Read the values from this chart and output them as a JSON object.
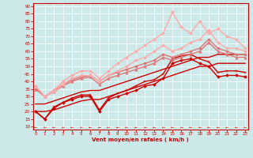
{
  "bg_color": "#cce8e8",
  "grid_color": "#ffffff",
  "xlabel": "Vent moyen/en rafales ( km/h )",
  "x_ticks": [
    0,
    1,
    2,
    3,
    4,
    5,
    6,
    7,
    8,
    9,
    10,
    11,
    12,
    13,
    14,
    15,
    16,
    17,
    18,
    19,
    20,
    21,
    22,
    23
  ],
  "yticks": [
    10,
    15,
    20,
    25,
    30,
    35,
    40,
    45,
    50,
    55,
    60,
    65,
    70,
    75,
    80,
    85,
    90
  ],
  "ylim": [
    8,
    92
  ],
  "xlim": [
    -0.3,
    23.3
  ],
  "lines": [
    {
      "comment": "dark red with diamond markers - lower line",
      "x": [
        0,
        1,
        2,
        3,
        4,
        5,
        6,
        7,
        8,
        9,
        10,
        11,
        12,
        13,
        14,
        15,
        16,
        17,
        18,
        19,
        20,
        21,
        22,
        23
      ],
      "y": [
        20,
        15,
        22,
        26,
        28,
        30,
        30,
        20,
        28,
        30,
        32,
        34,
        37,
        38,
        42,
        52,
        54,
        55,
        52,
        50,
        43,
        44,
        44,
        43
      ],
      "color": "#cc0000",
      "lw": 1.0,
      "marker": "D",
      "ms": 2.0
    },
    {
      "comment": "dark red no marker - straight line low",
      "x": [
        0,
        1,
        2,
        3,
        4,
        5,
        6,
        7,
        8,
        9,
        10,
        11,
        12,
        13,
        14,
        15,
        16,
        17,
        18,
        19,
        20,
        21,
        22,
        23
      ],
      "y": [
        20,
        20,
        21,
        23,
        25,
        27,
        28,
        28,
        30,
        32,
        34,
        36,
        38,
        40,
        42,
        44,
        46,
        48,
        50,
        50,
        52,
        52,
        52,
        52
      ],
      "color": "#cc0000",
      "lw": 1.0,
      "marker": null,
      "ms": 0
    },
    {
      "comment": "dark red no marker - straight line high",
      "x": [
        0,
        1,
        2,
        3,
        4,
        5,
        6,
        7,
        8,
        9,
        10,
        11,
        12,
        13,
        14,
        15,
        16,
        17,
        18,
        19,
        20,
        21,
        22,
        23
      ],
      "y": [
        25,
        25,
        27,
        29,
        31,
        33,
        34,
        34,
        36,
        38,
        40,
        42,
        44,
        46,
        48,
        50,
        52,
        54,
        56,
        56,
        58,
        58,
        58,
        58
      ],
      "color": "#cc0000",
      "lw": 1.0,
      "marker": null,
      "ms": 0
    },
    {
      "comment": "dark red with small markers - upper active line",
      "x": [
        0,
        1,
        2,
        3,
        4,
        5,
        6,
        7,
        8,
        9,
        10,
        11,
        12,
        13,
        14,
        15,
        16,
        17,
        18,
        19,
        20,
        21,
        22,
        23
      ],
      "y": [
        20,
        15,
        23,
        26,
        29,
        31,
        31,
        21,
        29,
        32,
        34,
        37,
        40,
        41,
        45,
        55,
        57,
        58,
        55,
        53,
        46,
        47,
        47,
        46
      ],
      "color": "#cc0000",
      "lw": 1.0,
      "marker": "+",
      "ms": 3.5
    },
    {
      "comment": "medium pink with triangle markers",
      "x": [
        0,
        1,
        2,
        3,
        4,
        5,
        6,
        7,
        8,
        9,
        10,
        11,
        12,
        13,
        14,
        15,
        16,
        17,
        18,
        19,
        20,
        21,
        22,
        23
      ],
      "y": [
        35,
        30,
        33,
        37,
        40,
        42,
        43,
        38,
        42,
        44,
        46,
        48,
        50,
        52,
        56,
        54,
        56,
        58,
        60,
        66,
        60,
        58,
        56,
        56
      ],
      "color": "#dd7777",
      "lw": 1.0,
      "marker": "^",
      "ms": 2.5
    },
    {
      "comment": "medium pink with diamond markers",
      "x": [
        0,
        1,
        2,
        3,
        4,
        5,
        6,
        7,
        8,
        9,
        10,
        11,
        12,
        13,
        14,
        15,
        16,
        17,
        18,
        19,
        20,
        21,
        22,
        23
      ],
      "y": [
        35,
        30,
        34,
        38,
        41,
        43,
        44,
        40,
        44,
        46,
        48,
        50,
        52,
        54,
        58,
        56,
        58,
        60,
        62,
        68,
        62,
        60,
        58,
        58
      ],
      "color": "#dd7777",
      "lw": 1.0,
      "marker": "D",
      "ms": 2.0
    },
    {
      "comment": "light pink - upper line no marker",
      "x": [
        0,
        1,
        2,
        3,
        4,
        5,
        6,
        7,
        8,
        9,
        10,
        11,
        12,
        13,
        14,
        15,
        16,
        17,
        18,
        19,
        20,
        21,
        22,
        23
      ],
      "y": [
        37,
        30,
        33,
        38,
        42,
        44,
        44,
        40,
        44,
        47,
        50,
        54,
        56,
        60,
        64,
        60,
        62,
        66,
        68,
        74,
        66,
        62,
        62,
        60
      ],
      "color": "#ffaaaa",
      "lw": 1.0,
      "marker": "D",
      "ms": 2.0
    },
    {
      "comment": "light pink - highest line with peak",
      "x": [
        0,
        1,
        2,
        3,
        4,
        5,
        6,
        7,
        8,
        9,
        10,
        11,
        12,
        13,
        14,
        15,
        16,
        17,
        18,
        19,
        20,
        21,
        22,
        23
      ],
      "y": [
        37,
        30,
        34,
        40,
        44,
        47,
        47,
        42,
        47,
        52,
        56,
        60,
        64,
        68,
        72,
        86,
        76,
        72,
        80,
        72,
        75,
        70,
        68,
        62
      ],
      "color": "#ffaaaa",
      "lw": 1.0,
      "marker": "D",
      "ms": 2.0
    }
  ]
}
